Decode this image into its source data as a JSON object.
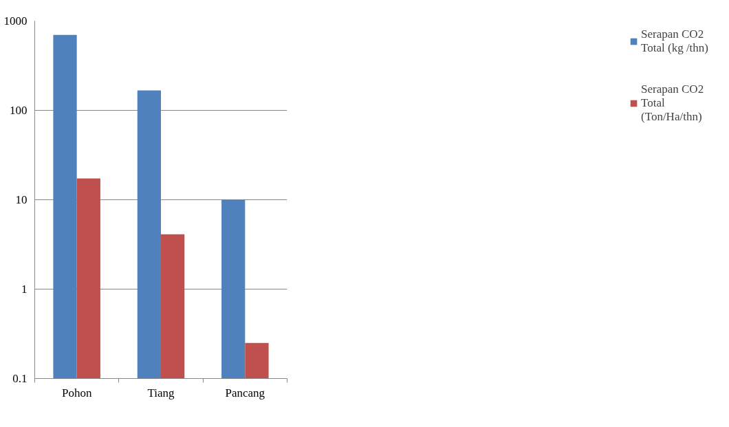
{
  "chart_data": {
    "type": "bar",
    "categories": [
      "Pohon",
      "Tiang",
      "Pancang"
    ],
    "series": [
      {
        "name": "Serapan CO2 Total (kg /thn)",
        "color": "#4f81bd",
        "values": [
          700,
          167,
          10
        ]
      },
      {
        "name": "Serapan CO2 Total (Ton/Ha/thn)",
        "color": "#c0504d",
        "values": [
          17.3,
          4.1,
          0.25
        ]
      }
    ],
    "log": "y",
    "ylim": [
      0.1,
      1000
    ],
    "yticks": [
      0.1,
      1,
      10,
      100,
      1000
    ],
    "grid": "y",
    "legend": "right"
  }
}
